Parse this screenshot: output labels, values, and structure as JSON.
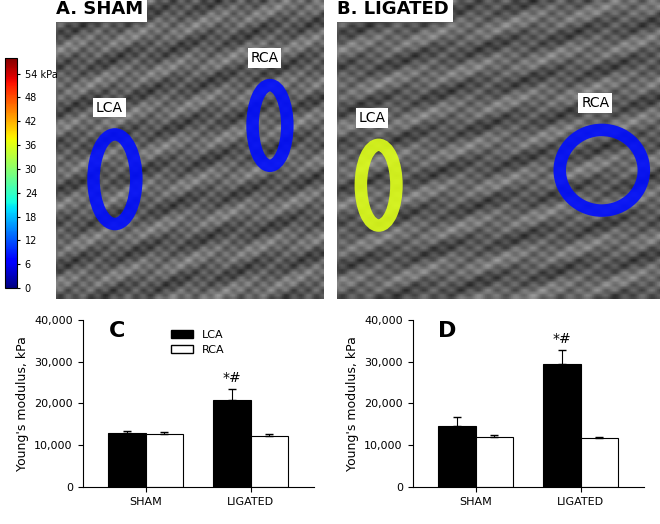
{
  "panels": [
    {
      "label": "A. SHAM",
      "vessels": [
        {
          "name": "LCA",
          "stiffness": 8
        },
        {
          "name": "RCA",
          "stiffness": 8
        }
      ]
    },
    {
      "label": "B. LIGATED",
      "vessels": [
        {
          "name": "LCA",
          "stiffness": 36
        },
        {
          "name": "RCA",
          "stiffness": 8
        }
      ]
    }
  ],
  "colorbar": {
    "range": [
      0,
      58
    ],
    "ticks": [
      {
        "value": 54,
        "label": "54 kPa"
      },
      48,
      42,
      36,
      30,
      24,
      18,
      12,
      6,
      0
    ]
  },
  "chart_data": [
    {
      "type": "bar",
      "label": "C",
      "y_label": "Young's modulus, kPa",
      "categories": [
        "SHAM",
        "LIGATED"
      ],
      "series": [
        {
          "name": "LCA",
          "color": "#000000",
          "values": [
            13000,
            20800
          ],
          "errors": [
            500,
            2600
          ]
        },
        {
          "name": "RCA",
          "color": "#ffffff",
          "values": [
            12700,
            12200
          ],
          "errors": [
            600,
            600
          ]
        }
      ],
      "ylim": [
        0,
        40000
      ],
      "yticks": [
        0,
        {
          "value": 10000,
          "label": "10,000"
        },
        {
          "value": 20000,
          "label": "20,000"
        },
        {
          "value": 30000,
          "label": "30,000"
        },
        {
          "value": 40000,
          "label": "40,000"
        }
      ],
      "legend": "upper center",
      "annotations": [
        {
          "text": "*#",
          "category": "LIGATED",
          "series": "LCA"
        }
      ]
    },
    {
      "type": "bar",
      "label": "D",
      "y_label": "Young's modulus, kPa",
      "categories": [
        "SHAM",
        "LIGATED"
      ],
      "series": [
        {
          "name": "LCA",
          "color": "#000000",
          "values": [
            14700,
            29400
          ],
          "errors": [
            2000,
            3300
          ]
        },
        {
          "name": "RCA",
          "color": "#ffffff",
          "values": [
            12000,
            11800
          ],
          "errors": [
            400,
            300
          ]
        }
      ],
      "ylim": [
        0,
        40000
      ],
      "yticks": [
        0,
        {
          "value": 10000,
          "label": "10,000"
        },
        {
          "value": 20000,
          "label": "20,000"
        },
        {
          "value": 30000,
          "label": "30,000"
        },
        {
          "value": 40000,
          "label": "40,000"
        }
      ],
      "annotations": [
        {
          "text": "*#",
          "category": "LIGATED",
          "series": "LCA"
        }
      ]
    }
  ]
}
